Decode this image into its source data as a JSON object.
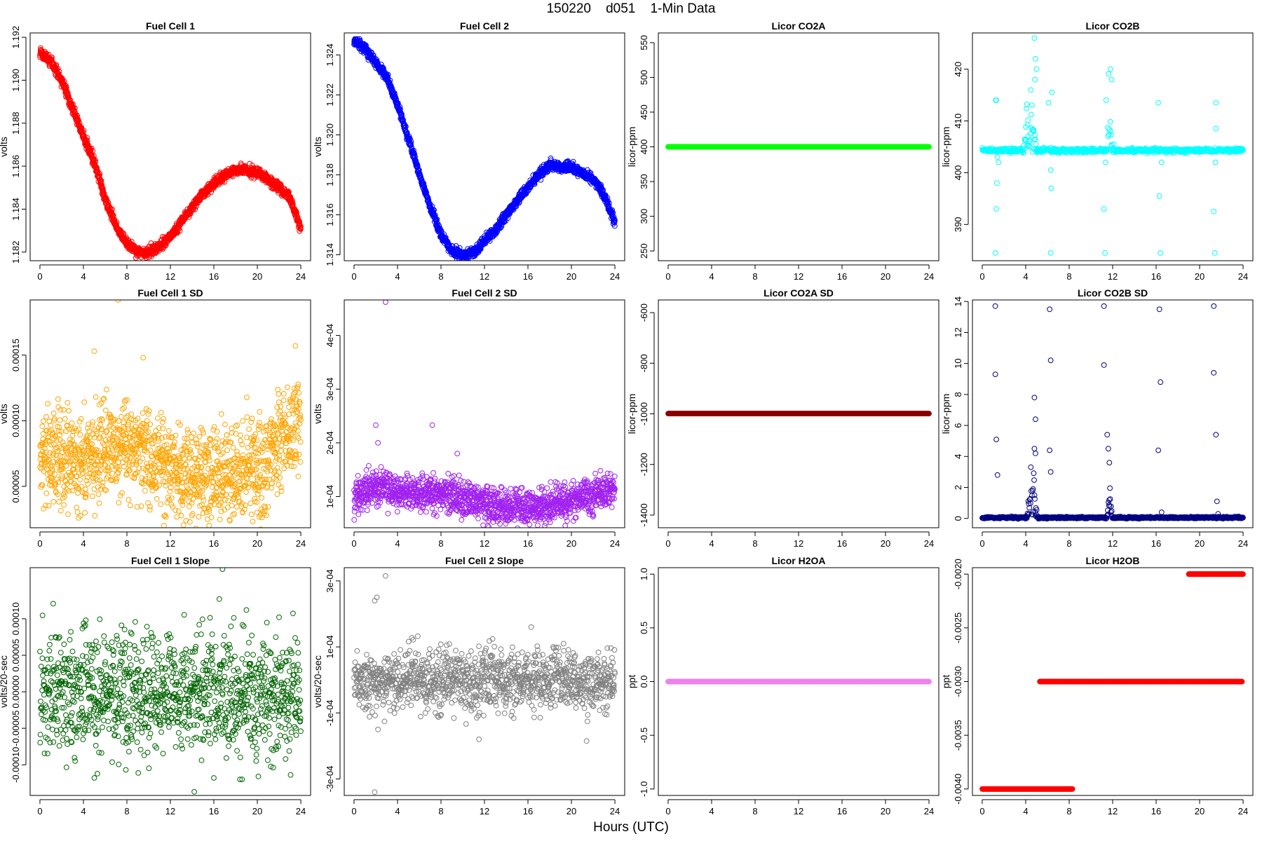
{
  "page": {
    "title": "150220    d051    1-Min Data",
    "x_caption": "Hours (UTC)"
  },
  "chart_data": [
    {
      "type": "scatter",
      "title": "Fuel Cell 1",
      "xlabel": "",
      "ylabel": "volts",
      "xlim": [
        -0.9,
        24.9
      ],
      "ylim": [
        1.1816,
        1.1922
      ],
      "xticks": [
        0,
        4,
        8,
        12,
        16,
        20,
        24
      ],
      "xtick_labels": [
        "0",
        "4",
        "8",
        "12",
        "16",
        "20",
        "24"
      ],
      "yticks": [
        1.182,
        1.184,
        1.186,
        1.188,
        1.19,
        1.192
      ],
      "ytick_labels": [
        "1.182",
        "1.184",
        "1.186",
        "1.188",
        "1.190",
        "1.192"
      ],
      "color": "#ff0000",
      "grid": false,
      "pattern": "smooth",
      "n": 1440,
      "noise": 0.00012,
      "points": [
        [
          0,
          1.1913
        ],
        [
          1,
          1.1909
        ],
        [
          2,
          1.19
        ],
        [
          3,
          1.1887
        ],
        [
          4,
          1.1874
        ],
        [
          5,
          1.1862
        ],
        [
          6,
          1.1845
        ],
        [
          7,
          1.1832
        ],
        [
          8,
          1.1824
        ],
        [
          9,
          1.182
        ],
        [
          10,
          1.182
        ],
        [
          11,
          1.1823
        ],
        [
          12,
          1.1827
        ],
        [
          13,
          1.1834
        ],
        [
          14,
          1.1841
        ],
        [
          15,
          1.1847
        ],
        [
          16,
          1.1852
        ],
        [
          17,
          1.1856
        ],
        [
          18,
          1.1858
        ],
        [
          19,
          1.1858
        ],
        [
          20,
          1.1857
        ],
        [
          21,
          1.1854
        ],
        [
          22,
          1.185
        ],
        [
          23,
          1.1845
        ],
        [
          24,
          1.1831
        ]
      ]
    },
    {
      "type": "scatter",
      "title": "Fuel Cell 2",
      "xlabel": "",
      "ylabel": "volts",
      "xlim": [
        -0.9,
        24.9
      ],
      "ylim": [
        1.3137,
        1.3251
      ],
      "xticks": [
        0,
        4,
        8,
        12,
        16,
        20,
        24
      ],
      "xtick_labels": [
        "0",
        "4",
        "8",
        "12",
        "16",
        "20",
        "24"
      ],
      "yticks": [
        1.314,
        1.316,
        1.318,
        1.32,
        1.322,
        1.324
      ],
      "ytick_labels": [
        "1.314",
        "1.316",
        "1.318",
        "1.320",
        "1.322",
        "1.324"
      ],
      "color": "#0000ff",
      "grid": false,
      "pattern": "smooth",
      "n": 1440,
      "noise": 0.00012,
      "points": [
        [
          0,
          1.3247
        ],
        [
          1,
          1.3243
        ],
        [
          2,
          1.3236
        ],
        [
          3,
          1.3229
        ],
        [
          4,
          1.3215
        ],
        [
          5,
          1.3198
        ],
        [
          6,
          1.3181
        ],
        [
          7,
          1.3164
        ],
        [
          8,
          1.315
        ],
        [
          9,
          1.3142
        ],
        [
          10,
          1.314
        ],
        [
          11,
          1.3141
        ],
        [
          12,
          1.3147
        ],
        [
          13,
          1.3152
        ],
        [
          14,
          1.316
        ],
        [
          15,
          1.3167
        ],
        [
          16,
          1.3174
        ],
        [
          17,
          1.318
        ],
        [
          18,
          1.3185
        ],
        [
          19,
          1.3184
        ],
        [
          20,
          1.3184
        ],
        [
          21,
          1.3181
        ],
        [
          22,
          1.3178
        ],
        [
          23,
          1.317
        ],
        [
          24,
          1.3156
        ]
      ]
    },
    {
      "type": "scatter",
      "title": "Licor CO2A",
      "xlabel": "",
      "ylabel": "licor-ppm",
      "xlim": [
        -0.9,
        24.9
      ],
      "ylim": [
        236,
        564
      ],
      "xticks": [
        0,
        4,
        8,
        12,
        16,
        20,
        24
      ],
      "xtick_labels": [
        "0",
        "4",
        "8",
        "12",
        "16",
        "20",
        "24"
      ],
      "yticks": [
        250,
        300,
        350,
        400,
        450,
        500,
        550
      ],
      "ytick_labels": [
        "250",
        "300",
        "350",
        "400",
        "450",
        "500",
        "550"
      ],
      "color": "#00ff00",
      "grid": false,
      "pattern": "constant",
      "n": 720,
      "value": 400
    },
    {
      "type": "scatter",
      "title": "Licor CO2B",
      "xlabel": "",
      "ylabel": "licor-ppm",
      "xlim": [
        -0.9,
        24.9
      ],
      "ylim": [
        383,
        427
      ],
      "xticks": [
        0,
        4,
        8,
        12,
        16,
        20,
        24
      ],
      "xtick_labels": [
        "0",
        "4",
        "8",
        "12",
        "16",
        "20",
        "24"
      ],
      "yticks": [
        390,
        400,
        410,
        420
      ],
      "ytick_labels": [
        "390",
        "400",
        "410",
        "420"
      ],
      "color": "#00ffff",
      "grid": false,
      "pattern": "baseline",
      "n": 720,
      "base": 404.3,
      "noise": 0.2,
      "bumps": [
        {
          "c": 4.4,
          "w": 0.6,
          "h": 6
        },
        {
          "c": 11.7,
          "w": 0.25,
          "h": 6
        }
      ],
      "extra": [
        [
          1.2,
          384.5
        ],
        [
          1.3,
          393
        ],
        [
          1.25,
          414
        ],
        [
          1.3,
          414
        ],
        [
          1.35,
          398
        ],
        [
          1.4,
          403
        ],
        [
          1.5,
          402
        ],
        [
          4.8,
          426
        ],
        [
          4.9,
          422
        ],
        [
          5.0,
          420
        ],
        [
          4.85,
          418
        ],
        [
          6.1,
          413.5
        ],
        [
          6.3,
          400.5
        ],
        [
          6.35,
          397
        ],
        [
          6.4,
          415.5
        ],
        [
          6.3,
          384.5
        ],
        [
          11.2,
          393
        ],
        [
          11.3,
          384.5
        ],
        [
          11.4,
          414
        ],
        [
          11.35,
          402
        ],
        [
          11.8,
          420
        ],
        [
          11.9,
          418
        ],
        [
          12.1,
          405.5
        ],
        [
          16.2,
          413.5
        ],
        [
          16.3,
          395.5
        ],
        [
          16.4,
          384.5
        ],
        [
          16.5,
          402
        ],
        [
          21.3,
          392.5
        ],
        [
          21.4,
          384.5
        ],
        [
          21.5,
          413.5
        ],
        [
          21.5,
          408.5
        ],
        [
          21.45,
          402
        ]
      ]
    },
    {
      "type": "scatter",
      "title": "Fuel Cell 1 SD",
      "xlabel": "",
      "ylabel": "volts",
      "xlim": [
        -0.9,
        24.9
      ],
      "ylim": [
        1.85e-05,
        0.000192
      ],
      "xticks": [
        0,
        4,
        8,
        12,
        16,
        20,
        24
      ],
      "xtick_labels": [
        "0",
        "4",
        "8",
        "12",
        "16",
        "20",
        "24"
      ],
      "yticks": [
        5e-05,
        0.0001,
        0.00015
      ],
      "ytick_labels": [
        "0.00005",
        "0.00010",
        "0.00015"
      ],
      "color": "#ffa500",
      "grid": false,
      "pattern": "cloud",
      "n": 1440,
      "noise": 1.8e-05,
      "points": [
        [
          0,
          7.5e-05
        ],
        [
          4,
          6.8e-05
        ],
        [
          8,
          8.2e-05
        ],
        [
          12,
          6.5e-05
        ],
        [
          16,
          5.5e-05
        ],
        [
          20,
          6.6e-05
        ],
        [
          24,
          9.8e-05
        ]
      ],
      "extra": [
        [
          7.2,
          0.000192
        ],
        [
          5,
          0.000153
        ],
        [
          9.5,
          0.000148
        ],
        [
          23.5,
          0.000157
        ]
      ]
    },
    {
      "type": "scatter",
      "title": "Fuel Cell 2 SD",
      "xlabel": "",
      "ylabel": "volts",
      "xlim": [
        -0.9,
        24.9
      ],
      "ylim": [
        4.2e-05,
        0.000466
      ],
      "xticks": [
        0,
        4,
        8,
        12,
        16,
        20,
        24
      ],
      "xtick_labels": [
        "0",
        "4",
        "8",
        "12",
        "16",
        "20",
        "24"
      ],
      "yticks": [
        0.0001,
        0.0002,
        0.0003,
        0.0004
      ],
      "ytick_labels": [
        "1e-04",
        "2e-04",
        "3e-04",
        "4e-04"
      ],
      "color": "#a020f0",
      "grid": false,
      "pattern": "cloud",
      "n": 1440,
      "noise": 1.7e-05,
      "points": [
        [
          0,
          0.0001
        ],
        [
          2,
          0.00012
        ],
        [
          4,
          0.000105
        ],
        [
          8,
          0.000105
        ],
        [
          12,
          8.5e-05
        ],
        [
          16,
          8e-05
        ],
        [
          20,
          9e-05
        ],
        [
          24,
          0.000115
        ]
      ],
      "extra": [
        [
          2.9,
          0.000462
        ],
        [
          2,
          0.000233
        ],
        [
          7.2,
          0.000233
        ],
        [
          2.2,
          0.0002
        ],
        [
          9.5,
          0.00018
        ]
      ]
    },
    {
      "type": "scatter",
      "title": "Licor CO2A SD",
      "xlabel": "",
      "ylabel": "licor-ppm",
      "xlim": [
        -0.9,
        24.9
      ],
      "ylim": [
        -1450,
        -550
      ],
      "xticks": [
        0,
        4,
        8,
        12,
        16,
        20,
        24
      ],
      "xtick_labels": [
        "0",
        "4",
        "8",
        "12",
        "16",
        "20",
        "24"
      ],
      "yticks": [
        -1400,
        -1200,
        -1000,
        -800,
        -600
      ],
      "ytick_labels": [
        "-1400",
        "-1200",
        "-1000",
        "-800",
        "-600"
      ],
      "color": "#8b0000",
      "grid": false,
      "pattern": "constant",
      "n": 720,
      "value": -999
    },
    {
      "type": "scatter",
      "title": "Licor CO2B SD",
      "xlabel": "",
      "ylabel": "licor-ppm",
      "xlim": [
        -0.9,
        24.9
      ],
      "ylim": [
        -0.6,
        14.1
      ],
      "xticks": [
        0,
        4,
        8,
        12,
        16,
        20,
        24
      ],
      "xtick_labels": [
        "0",
        "4",
        "8",
        "12",
        "16",
        "20",
        "24"
      ],
      "yticks": [
        0,
        2,
        4,
        6,
        8,
        10,
        12,
        14
      ],
      "ytick_labels": [
        "0",
        "2",
        "4",
        "6",
        "8",
        "10",
        "12",
        "14"
      ],
      "color": "#000080",
      "grid": false,
      "pattern": "baseline",
      "n": 720,
      "base": 0.05,
      "noise": 0.03,
      "bumps": [
        {
          "c": 4.6,
          "w": 0.45,
          "h": 1.5
        },
        {
          "c": 11.7,
          "w": 0.25,
          "h": 1.5
        }
      ],
      "extra": [
        [
          1.2,
          13.7
        ],
        [
          1.2,
          9.3
        ],
        [
          1.3,
          5.1
        ],
        [
          1.4,
          2.8
        ],
        [
          6.2,
          13.5
        ],
        [
          6.3,
          10.2
        ],
        [
          6.2,
          4.4
        ],
        [
          6.3,
          3
        ],
        [
          4.8,
          7.8
        ],
        [
          4.9,
          6.4
        ],
        [
          4.8,
          4.5
        ],
        [
          4.9,
          4.2
        ],
        [
          11.2,
          13.7
        ],
        [
          11.2,
          9.9
        ],
        [
          11.5,
          5.4
        ],
        [
          11.6,
          4.5
        ],
        [
          11.7,
          3.6
        ],
        [
          16.3,
          13.5
        ],
        [
          16.4,
          8.8
        ],
        [
          16.2,
          4.4
        ],
        [
          16.5,
          0.4
        ],
        [
          21.3,
          13.7
        ],
        [
          21.3,
          9.4
        ],
        [
          21.5,
          5.4
        ],
        [
          21.6,
          1.1
        ],
        [
          21.7,
          0.3
        ]
      ]
    },
    {
      "type": "scatter",
      "title": "Fuel Cell 1 Slope",
      "xlabel": "",
      "ylabel": "volts/20-sec",
      "xlim": [
        -0.9,
        24.9
      ],
      "ylim": [
        -0.000142,
        0.00017
      ],
      "xticks": [
        0,
        4,
        8,
        12,
        16,
        20,
        24
      ],
      "xtick_labels": [
        "0",
        "4",
        "8",
        "12",
        "16",
        "20",
        "24"
      ],
      "yticks": [
        -0.0001,
        -5e-05,
        0,
        5e-05,
        0.0001
      ],
      "ytick_labels": [
        "-0.00010",
        "-0.00005",
        "0.00000",
        "0.00005",
        "0.00010"
      ],
      "color": "#006400",
      "grid": false,
      "pattern": "cloud",
      "n": 1200,
      "noise": 4e-05,
      "points": [
        [
          0,
          0
        ],
        [
          24,
          0
        ]
      ],
      "extra": [
        [
          16.8,
          0.000168
        ],
        [
          16.5,
          0.000127
        ],
        [
          19,
          0.000112
        ],
        [
          22,
          0.000102
        ],
        [
          14.2,
          -0.000137
        ],
        [
          18.4,
          -0.00012
        ],
        [
          18.6,
          -0.00012
        ],
        [
          16,
          -0.000118
        ],
        [
          5,
          -0.000118
        ]
      ]
    },
    {
      "type": "scatter",
      "title": "Fuel Cell 2 Slope",
      "xlabel": "",
      "ylabel": "volts/20-sec",
      "xlim": [
        -0.9,
        24.9
      ],
      "ylim": [
        -0.00035,
        0.00034
      ],
      "xticks": [
        0,
        4,
        8,
        12,
        16,
        20,
        24
      ],
      "xtick_labels": [
        "0",
        "4",
        "8",
        "12",
        "16",
        "20",
        "24"
      ],
      "yticks": [
        -0.0003,
        -0.0001,
        0.0001,
        0.0003
      ],
      "ytick_labels": [
        "-3e-04",
        "-1e-04",
        "1e-04",
        "3e-04"
      ],
      "color": "#808080",
      "grid": false,
      "pattern": "cloud",
      "n": 1200,
      "noise": 4.5e-05,
      "points": [
        [
          0,
          0
        ],
        [
          24,
          0
        ]
      ],
      "extra": [
        [
          2.9,
          0.000315
        ],
        [
          2.1,
          0.00025
        ],
        [
          1.9,
          0.00024
        ],
        [
          1.9,
          -0.00034
        ],
        [
          11.5,
          -0.00018
        ],
        [
          21.4,
          -0.000185
        ],
        [
          2.2,
          -0.00015
        ],
        [
          16.3,
          0.00016
        ]
      ]
    },
    {
      "type": "scatter",
      "title": "Licor H2OA",
      "xlabel": "",
      "ylabel": "ppt",
      "xlim": [
        -0.9,
        24.9
      ],
      "ylim": [
        -1.06,
        1.06
      ],
      "xticks": [
        0,
        4,
        8,
        12,
        16,
        20,
        24
      ],
      "xtick_labels": [
        "0",
        "4",
        "8",
        "12",
        "16",
        "20",
        "24"
      ],
      "yticks": [
        -1,
        -0.5,
        0,
        0.5,
        1
      ],
      "ytick_labels": [
        "-1.0",
        "-0.5",
        "0.0",
        "0.5",
        "1.0"
      ],
      "color": "#ee82ee",
      "grid": false,
      "pattern": "constant",
      "n": 720,
      "value": 0
    },
    {
      "type": "scatter",
      "title": "Licor H2OB",
      "xlabel": "",
      "ylabel": "ppt",
      "xlim": [
        -0.9,
        24.9
      ],
      "ylim": [
        -0.00406,
        -0.00194
      ],
      "xticks": [
        0,
        4,
        8,
        12,
        16,
        20,
        24
      ],
      "xtick_labels": [
        "0",
        "4",
        "8",
        "12",
        "16",
        "20",
        "24"
      ],
      "yticks": [
        -0.004,
        -0.0035,
        -0.003,
        -0.0025,
        -0.002
      ],
      "ytick_labels": [
        "-0.0040",
        "-0.0035",
        "-0.0030",
        "-0.0025",
        "-0.0020"
      ],
      "color": "#ff0000",
      "grid": false,
      "pattern": "steps",
      "segments": [
        {
          "x0": 0,
          "x1": 8.3,
          "y": -0.004,
          "n": 260
        },
        {
          "x0": 5.3,
          "x1": 23.9,
          "y": -0.003,
          "n": 500
        },
        {
          "x0": 19,
          "x1": 24,
          "y": -0.002,
          "n": 180
        }
      ]
    }
  ]
}
